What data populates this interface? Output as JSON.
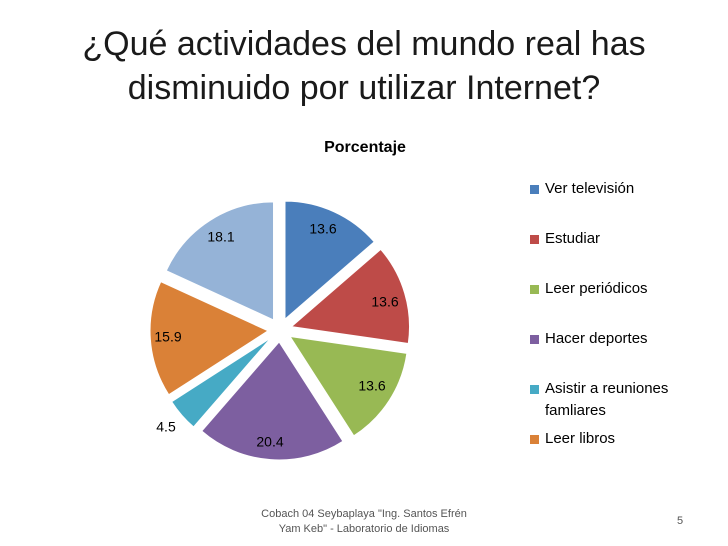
{
  "slide": {
    "title": "¿Qué actividades del mundo real has disminuido por utilizar Internet?",
    "footer": "Cobach 04 Seybaplaya \"Ing. Santos Efrén Yam Keb\" - Laboratorio de Idiomas",
    "page_number": "5"
  },
  "chart_data": {
    "type": "pie",
    "title": "Porcentaje",
    "exploded": true,
    "legend_position": "right",
    "slices": [
      {
        "label": "Ver televisión",
        "value": 13.6,
        "display": "13.6",
        "color": "#4A7EBB"
      },
      {
        "label": "Estudiar",
        "value": 13.6,
        "display": "13.6",
        "color": "#BE4B48"
      },
      {
        "label": "Leer periódicos",
        "value": 13.6,
        "display": "13.6",
        "color": "#98B954"
      },
      {
        "label": "Hacer deportes",
        "value": 20.4,
        "display": "20.4",
        "color": "#7D5FA0"
      },
      {
        "label": "Asistir a reuniones famliares",
        "value": 4.5,
        "display": "4.5",
        "color": "#46AAC5"
      },
      {
        "label": "Leer libros",
        "value": 15.9,
        "display": "15.9",
        "color": "#DA8137"
      },
      {
        "label": "",
        "value": 18.1,
        "display": "18.1",
        "color": "#95B3D7"
      }
    ]
  }
}
